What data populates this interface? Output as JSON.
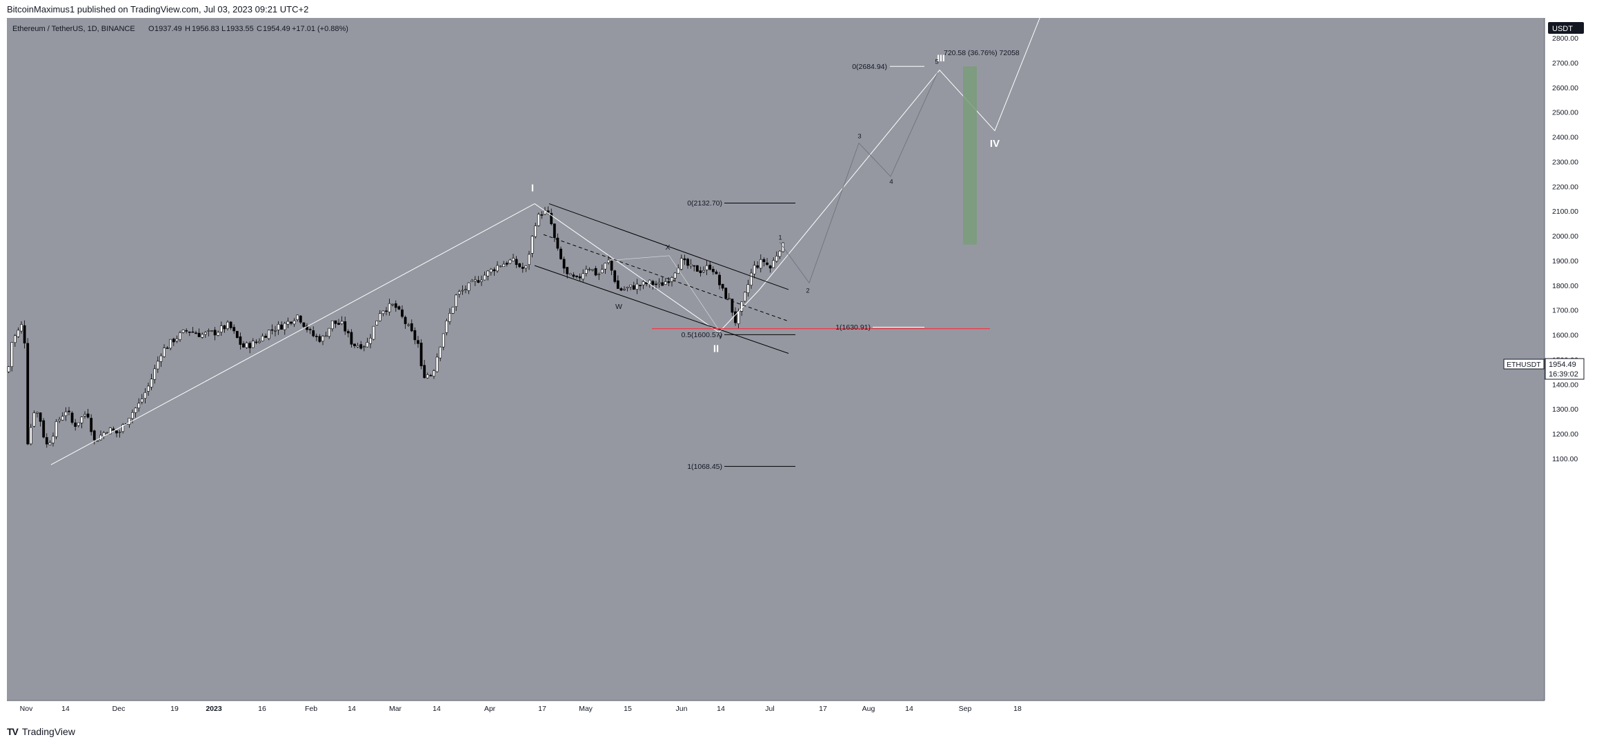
{
  "header": {
    "published": "BitcoinMaximus1 published on TradingView.com, Jul 03, 2023 09:21 UTC+2"
  },
  "legend": {
    "symbol": "Ethereum / TetherUS, 1D, BINANCE",
    "o_label": "O",
    "o_value": "1937.49",
    "h_label": "H",
    "h_value": "1956.83",
    "l_label": "L",
    "l_value": "1933.55",
    "c_label": "C",
    "c_value": "1954.49",
    "change": "+17.01 (+0.88%)"
  },
  "price_axis": {
    "currency": "USDT",
    "ticks": [
      "2800.00",
      "2700.00",
      "2600.00",
      "2500.00",
      "2400.00",
      "2300.00",
      "2200.00",
      "2100.00",
      "2000.00",
      "1900.00",
      "1800.00",
      "1700.00",
      "1600.00",
      "1500.00",
      "1400.00",
      "1300.00",
      "1200.00",
      "1100.00"
    ],
    "last_symbol": "ETHUSDT",
    "last_price": "1954.49",
    "countdown": "16:39:02"
  },
  "time_axis": {
    "ticks": [
      "Nov",
      "14",
      "Dec",
      "19",
      "2023",
      "16",
      "Feb",
      "14",
      "Mar",
      "14",
      "Apr",
      "17",
      "May",
      "15",
      "Jun",
      "14",
      "Jul",
      "17",
      "Aug",
      "14",
      "Sep",
      "18"
    ]
  },
  "footer": {
    "brand": "TradingView"
  },
  "colors": {
    "background": "#9598a1",
    "up_candle": "#ffffff",
    "down_candle": "#000000",
    "support_line": "#f23645",
    "target_box": "#7a9c79",
    "wave_line": "#ffffff",
    "channel_line": "#000000"
  },
  "chart_data": {
    "type": "candlestick",
    "ylim": [
      1030,
      2870
    ],
    "price_ticks": [
      2800,
      2700,
      2600,
      2500,
      2400,
      2300,
      2200,
      2100,
      2000,
      1900,
      1800,
      1700,
      1600,
      1500,
      1400,
      1300,
      1200,
      1100
    ],
    "last_price": 1954.49,
    "fib_levels": [
      {
        "label": "0(2684.94)",
        "price": 2684.94
      },
      {
        "label": "0(2132.70)",
        "price": 2132.7
      },
      {
        "label": "1(1630.91)",
        "price": 1630.91
      },
      {
        "label": "0.5(1600.57)",
        "price": 1600.57
      },
      {
        "label": "1(1068.45)",
        "price": 1068.45
      }
    ],
    "support_level": 1625,
    "target_range": [
      1965,
      2685
    ],
    "measure_label": "720.58 (36.76%) 72058",
    "wave_labels": [
      "I",
      "II",
      "III",
      "IV",
      "W",
      "X",
      "Y",
      "1",
      "2",
      "3",
      "4",
      "5"
    ]
  }
}
